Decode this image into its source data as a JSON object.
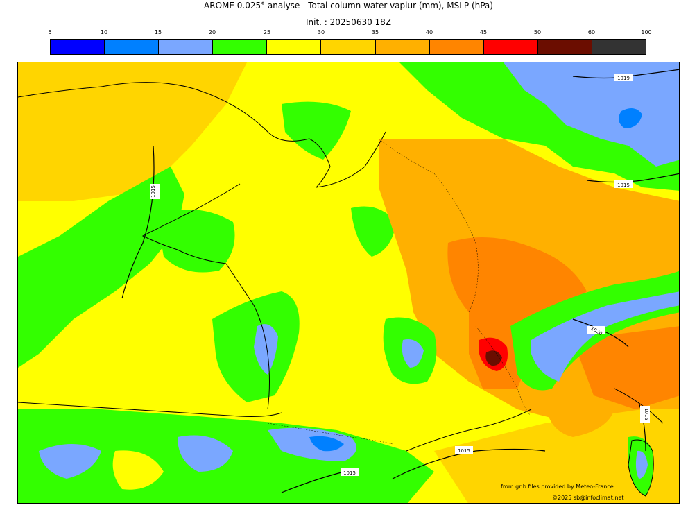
{
  "header": {
    "title": "AROME 0.025° analyse - Total column water vapiur (mm), MSLP (hPa)",
    "init": "Init. : 20250630 18Z"
  },
  "colorbar": {
    "ticks": [
      "5",
      "10",
      "15",
      "20",
      "25",
      "30",
      "35",
      "40",
      "45",
      "50",
      "60",
      "100"
    ],
    "colors": [
      "#0000ff",
      "#0080ff",
      "#7aa7ff",
      "#33ff00",
      "#ffff00",
      "#ffd500",
      "#ffb000",
      "#ff8500",
      "#ff0000",
      "#6b0d00",
      "#333333"
    ]
  },
  "map": {
    "isobar_labels": [
      "1015",
      "1015",
      "1015",
      "1015",
      "1015",
      "1019",
      "1020"
    ]
  },
  "footer": {
    "source": "from grib files provided by Meteo-France",
    "copyright": "©2025 sb@infoclimat.net"
  }
}
